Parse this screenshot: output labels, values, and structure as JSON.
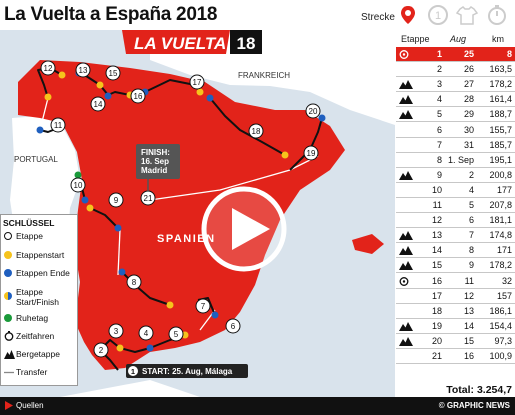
{
  "header": {
    "title": "La Vuelta a España 2018",
    "strecke_label": "Strecke",
    "tab_icons": [
      "map-pin-icon",
      "stage-1-icon",
      "jersey-icon",
      "stopwatch-icon"
    ]
  },
  "map": {
    "logo_text": "LA VUELTA",
    "logo_number": "18",
    "country_labels": {
      "france": "FRANKREICH",
      "portugal": "PORTUGAL",
      "spain": "SPANIEN"
    },
    "finish_label": {
      "line1": "FINISH:",
      "line2": "16. Sep",
      "line3": "Madrid",
      "number": "21"
    },
    "start_label": {
      "number": "1",
      "text": "START: 25. Aug, Málaga"
    },
    "stage_numbers": [
      "1",
      "2",
      "3",
      "4",
      "5",
      "6",
      "7",
      "8",
      "9",
      "10",
      "11",
      "12",
      "13",
      "14",
      "15",
      "16",
      "17",
      "18",
      "19",
      "20",
      "21"
    ],
    "play_button": "play-icon",
    "colors": {
      "spain": "#e2231a",
      "sea": "#d9e3ec",
      "land": "#ffffff",
      "route": "#111111",
      "transfer": "#ffffff",
      "stage_start": "#f6c31c",
      "stage_end": "#1f5fbf",
      "rest_day": "#1a9a3a"
    }
  },
  "legend": {
    "title": "SCHLÜSSEL",
    "items": [
      {
        "label": "Etappe",
        "icon": "stage-number-circle"
      },
      {
        "label": "Etappenstart",
        "color": "#f6c31c"
      },
      {
        "label": "Etappen Ende",
        "color": "#1f5fbf"
      },
      {
        "label": "Etappe",
        "label2": "Start/Finish",
        "color": "half-yellow-blue"
      },
      {
        "label": "Ruhetag",
        "color": "#1a9a3a"
      },
      {
        "label": "Zeitfahren",
        "icon": "time-trial-icon"
      },
      {
        "label": "Bergetappe",
        "icon": "mountain-icon"
      },
      {
        "label": "Transfer",
        "icon": "transfer-line"
      }
    ]
  },
  "table": {
    "headers": {
      "etappe": "Etappe",
      "aug": "Aug",
      "km": "km"
    },
    "rows": [
      {
        "etappe": "1",
        "date": "25",
        "km": "8",
        "icon": "time-trial-icon",
        "highlight": true
      },
      {
        "etappe": "2",
        "date": "26",
        "km": "163,5",
        "icon": ""
      },
      {
        "etappe": "3",
        "date": "27",
        "km": "178,2",
        "icon": "mountain-icon"
      },
      {
        "etappe": "4",
        "date": "28",
        "km": "161,4",
        "icon": "mountain-icon"
      },
      {
        "etappe": "5",
        "date": "29",
        "km": "188,7",
        "icon": "mountain-icon"
      },
      {
        "etappe": "6",
        "date": "30",
        "km": "155,7",
        "icon": ""
      },
      {
        "etappe": "7",
        "date": "31",
        "km": "185,7",
        "icon": ""
      },
      {
        "etappe": "8",
        "date": "1. Sep",
        "km": "195,1",
        "icon": ""
      },
      {
        "etappe": "9",
        "date": "2",
        "km": "200,8",
        "icon": "mountain-icon"
      },
      {
        "etappe": "10",
        "date": "4",
        "km": "177",
        "icon": ""
      },
      {
        "etappe": "11",
        "date": "5",
        "km": "207,8",
        "icon": ""
      },
      {
        "etappe": "12",
        "date": "6",
        "km": "181,1",
        "icon": ""
      },
      {
        "etappe": "13",
        "date": "7",
        "km": "174,8",
        "icon": "mountain-icon"
      },
      {
        "etappe": "14",
        "date": "8",
        "km": "171",
        "icon": "mountain-icon"
      },
      {
        "etappe": "15",
        "date": "9",
        "km": "178,2",
        "icon": "mountain-icon"
      },
      {
        "etappe": "16",
        "date": "11",
        "km": "32",
        "icon": "time-trial-icon"
      },
      {
        "etappe": "17",
        "date": "12",
        "km": "157",
        "icon": ""
      },
      {
        "etappe": "18",
        "date": "13",
        "km": "186,1",
        "icon": ""
      },
      {
        "etappe": "19",
        "date": "14",
        "km": "154,4",
        "icon": "mountain-icon"
      },
      {
        "etappe": "20",
        "date": "15",
        "km": "97,3",
        "icon": "mountain-icon"
      },
      {
        "etappe": "21",
        "date": "16",
        "km": "100,9",
        "icon": ""
      }
    ],
    "total": "Total: 3.254,7"
  },
  "footer": {
    "sources": "Quellen",
    "credit": "© GRAPHIC NEWS"
  }
}
